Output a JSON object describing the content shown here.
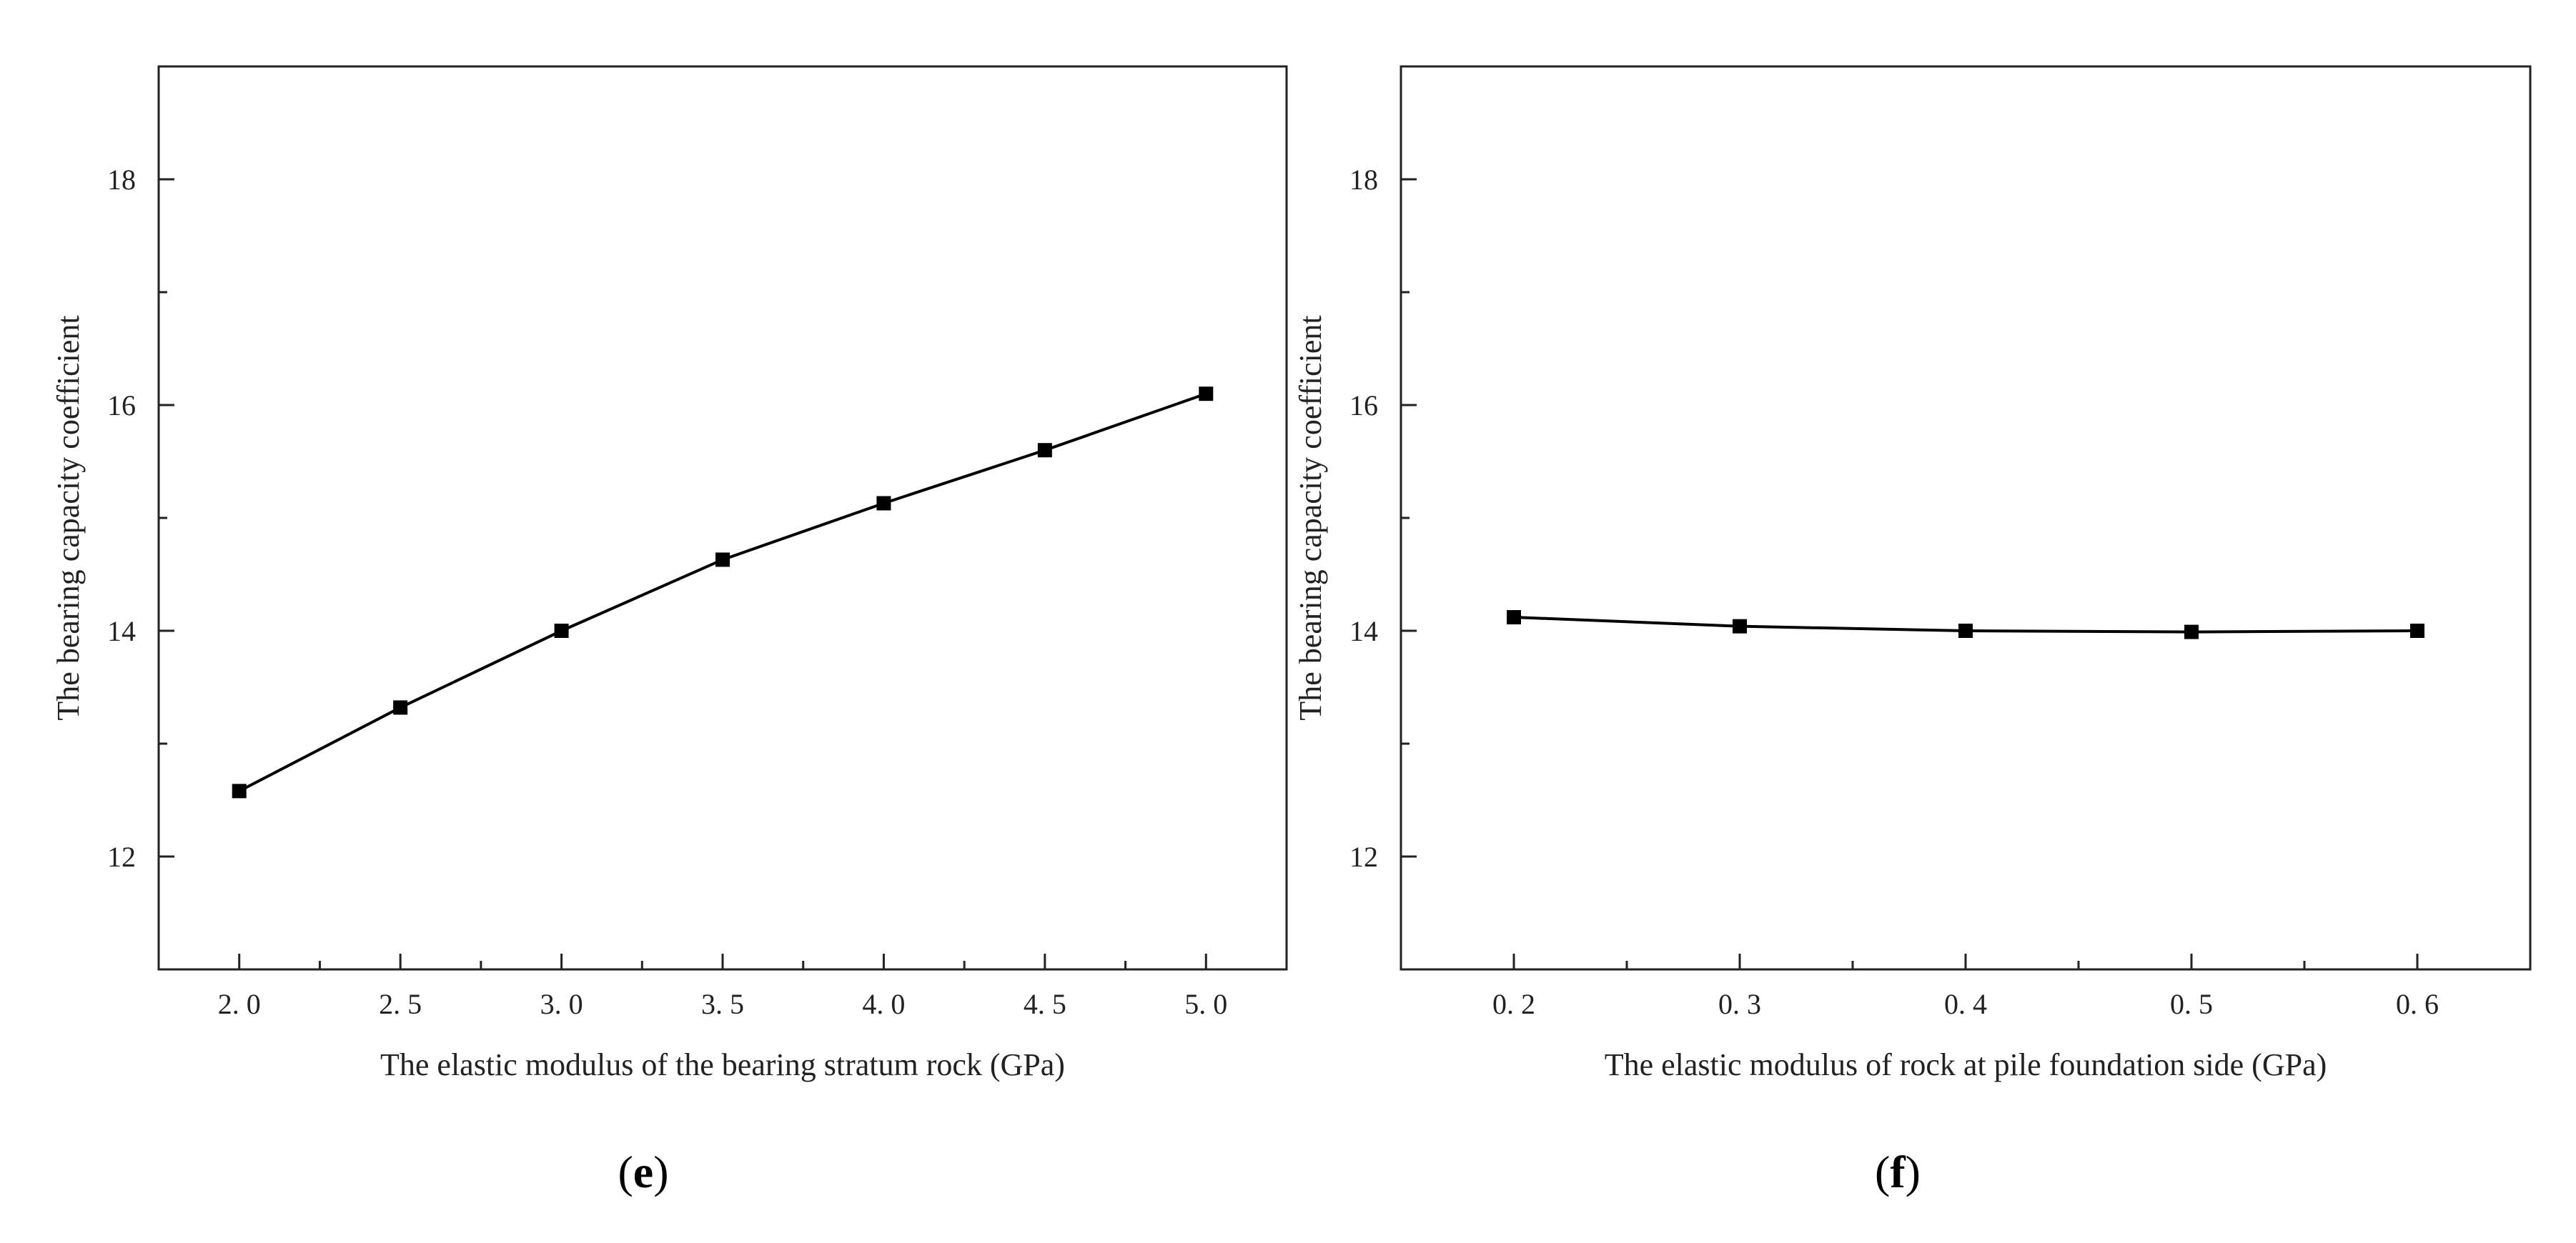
{
  "chart_data": [
    {
      "type": "line",
      "panel": "e",
      "xlabel": "The elastic modulus of the bearing stratum rock (GPa)",
      "ylabel": "The bearing capacity coefficient",
      "x": [
        2.0,
        2.5,
        3.0,
        3.5,
        4.0,
        4.5,
        5.0
      ],
      "x_tick_labels": [
        "2. 0",
        "2. 5",
        "3. 0",
        "3. 5",
        "4. 0",
        "4. 5",
        "5. 0"
      ],
      "series": [
        {
          "values": [
            12.58,
            13.32,
            14.0,
            14.63,
            15.13,
            15.6,
            16.1
          ]
        }
      ],
      "y_ticks": [
        12,
        14,
        16,
        18
      ],
      "xlim": [
        1.75,
        5.25
      ],
      "ylim": [
        11.0,
        19.0
      ],
      "grid": false,
      "marker": "square"
    },
    {
      "type": "line",
      "panel": "f",
      "xlabel": "The elastic modulus of rock at pile foundation side (GPa)",
      "ylabel": "The bearing capacity coefficient",
      "x": [
        0.2,
        0.3,
        0.4,
        0.5,
        0.6
      ],
      "x_tick_labels": [
        "0. 2",
        "0. 3",
        "0. 4",
        "0. 5",
        "0. 6"
      ],
      "series": [
        {
          "values": [
            14.12,
            14.04,
            14.0,
            13.99,
            14.0
          ]
        }
      ],
      "y_ticks": [
        12,
        14,
        16,
        18
      ],
      "xlim": [
        0.15,
        0.65
      ],
      "ylim": [
        11.0,
        19.0
      ],
      "grid": false,
      "marker": "square"
    }
  ]
}
